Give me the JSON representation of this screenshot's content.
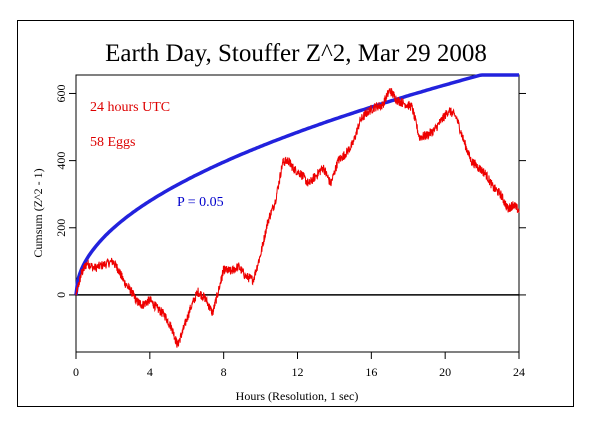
{
  "chart_data": {
    "type": "line",
    "title": "Earth Day, Stouffer Z^2, Mar 29 2008",
    "xlabel": "Hours (Resolution, 1 sec)",
    "ylabel": "Cumsum (Z^2 - 1)",
    "xlim": [
      0,
      24
    ],
    "ylim": [
      -170,
      655
    ],
    "x_ticks": [
      0,
      4,
      8,
      12,
      16,
      20,
      24
    ],
    "y_ticks": [
      0,
      200,
      400,
      600
    ],
    "grid": false,
    "annotations": [
      {
        "text": "24 hours UTC",
        "color": "#dd0000"
      },
      {
        "text": "58 Eggs",
        "color": "#dd0000"
      },
      {
        "text": "P = 0.05",
        "color": "#0000cc"
      }
    ],
    "colors": {
      "cumsum": "#ee0000",
      "probability": "#2222dd",
      "zero_line": "#000000"
    },
    "series": [
      {
        "name": "Cumsum",
        "x": [
          0,
          0.3,
          0.6,
          1.0,
          1.5,
          2.0,
          2.3,
          2.6,
          3.0,
          3.3,
          3.6,
          4.0,
          4.4,
          4.8,
          5.2,
          5.5,
          5.8,
          6.2,
          6.6,
          7.0,
          7.4,
          7.8,
          8.0,
          8.4,
          8.8,
          9.2,
          9.6,
          10.0,
          10.4,
          10.8,
          11.2,
          11.5,
          11.8,
          12.2,
          12.6,
          13.0,
          13.4,
          13.8,
          14.2,
          14.6,
          15.0,
          15.4,
          15.8,
          16.2,
          16.6,
          17.0,
          17.4,
          17.8,
          18.2,
          18.6,
          19.0,
          19.4,
          19.8,
          20.2,
          20.6,
          21.0,
          21.4,
          21.8,
          22.2,
          22.6,
          23.0,
          23.4,
          23.7,
          24.0
        ],
        "y": [
          0,
          65,
          95,
          80,
          90,
          100,
          75,
          40,
          10,
          -20,
          -30,
          -15,
          -40,
          -60,
          -100,
          -150,
          -105,
          -40,
          10,
          -10,
          -55,
          30,
          75,
          70,
          85,
          55,
          45,
          120,
          220,
          280,
          395,
          400,
          375,
          360,
          330,
          355,
          380,
          330,
          400,
          420,
          450,
          520,
          545,
          560,
          565,
          610,
          580,
          570,
          560,
          470,
          475,
          490,
          520,
          550,
          530,
          460,
          400,
          380,
          360,
          320,
          300,
          255,
          270,
          250
        ]
      },
      {
        "name": "P = 0.05",
        "formula": "probability envelope for p = 0.05"
      }
    ]
  }
}
